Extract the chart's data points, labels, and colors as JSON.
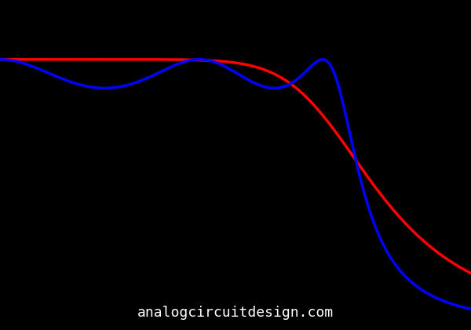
{
  "background_color": "#000000",
  "butterworth_color": "#ff0000",
  "chebyshev_color": "#0000ff",
  "butterworth_linewidth": 2.5,
  "chebyshev_linewidth": 2.5,
  "order": 5,
  "ripple_db": 1.0,
  "cutoff": 0.72,
  "watermark_text": "analogcircuitdesign.com",
  "watermark_color": "#ffffff",
  "watermark_fontsize": 13,
  "figsize": [
    6.0,
    4.21
  ],
  "dpi": 100
}
